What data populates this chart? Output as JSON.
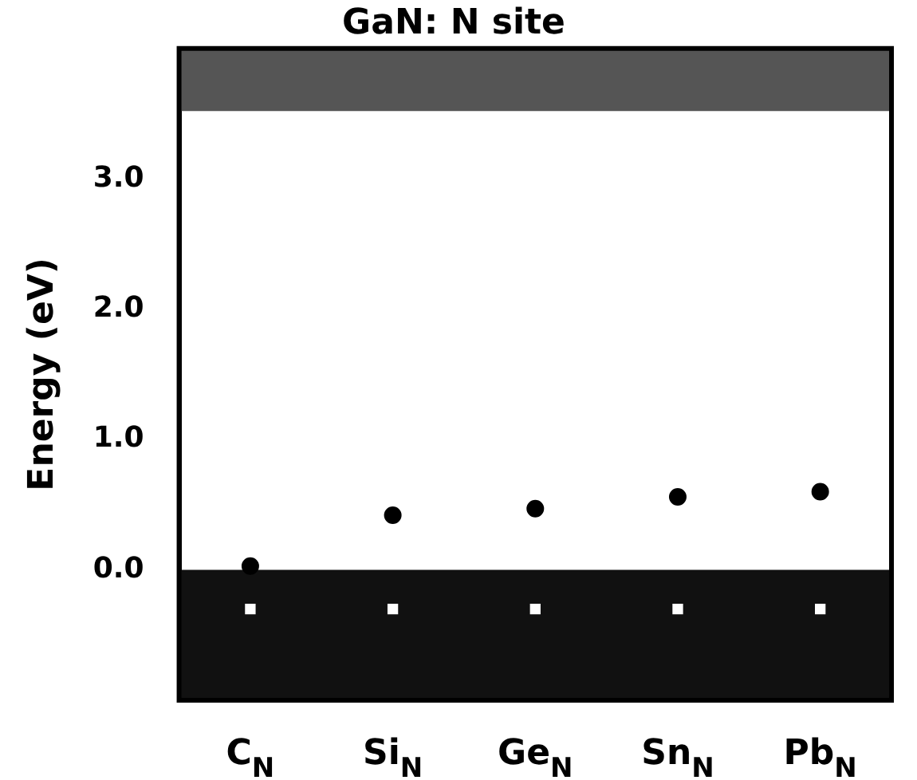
{
  "chart_data": {
    "type": "scatter",
    "title": "GaN: N site",
    "ylabel": "Energy (eV)",
    "categories": [
      "C$_{N}$",
      "Si$_{N}$",
      "Ge$_{N}$",
      "Sn$_{N}$",
      "Pb$_{N}$"
    ],
    "series": [
      {
        "color": "#000000",
        "values": [
          0.03,
          0.42,
          0.47,
          0.56,
          0.6
        ]
      },
      {
        "color": "#ffffff",
        "marker": "square",
        "values": [
          -0.3,
          -0.3,
          -0.3,
          -0.3,
          -0.3
        ]
      }
    ],
    "ylim": [
      -1.0,
      4.0
    ],
    "yticks": [
      {
        "value": 0,
        "label": "0.0"
      },
      {
        "value": 1,
        "label": "1.0"
      },
      {
        "value": 2,
        "label": "2.0"
      },
      {
        "value": 3,
        "label": "3.0"
      }
    ],
    "bands": [
      {
        "axis": "y",
        "from": -1.0,
        "to": 0,
        "color": "#111111"
      },
      {
        "axis": "y",
        "from": 3.52,
        "to": 4.0,
        "color": "#555555"
      }
    ],
    "marker": "circle",
    "grid": false,
    "legend": false
  }
}
